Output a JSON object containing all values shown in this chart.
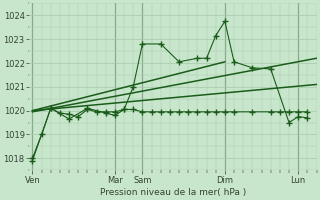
{
  "bg_color": "#c8e6cc",
  "grid_color": "#a8c8ac",
  "line_color": "#1a5c1a",
  "xlabel_text": "Pression niveau de la mer( hPa )",
  "xlabels": [
    "Ven",
    "Mar",
    "Sam",
    "Dim",
    "Lun"
  ],
  "xlabels_x": [
    0.0,
    4.5,
    6.0,
    10.5,
    14.5
  ],
  "vlines_x": [
    0.0,
    4.5,
    6.0,
    10.5,
    14.5
  ],
  "ylim": [
    1017.5,
    1024.5
  ],
  "xlim": [
    -0.2,
    15.5
  ],
  "yticks": [
    1018,
    1019,
    1020,
    1021,
    1022,
    1023,
    1024
  ],
  "series1_x": [
    0,
    1,
    2,
    3,
    4,
    4.5,
    5,
    5.5,
    6,
    7,
    8,
    9,
    9.5,
    10,
    10.5,
    11,
    12,
    13,
    14,
    14.5,
    15
  ],
  "series1_y": [
    1017.9,
    1020.1,
    1019.65,
    1020.1,
    1019.9,
    1019.8,
    1020.05,
    1021.0,
    1022.8,
    1022.8,
    1022.05,
    1022.2,
    1022.2,
    1023.15,
    1023.75,
    1022.05,
    1021.8,
    1021.75,
    1019.5,
    1019.75,
    1019.7
  ],
  "series2_x": [
    0,
    0.5,
    1,
    1.5,
    2,
    2.5,
    3,
    3.5,
    4,
    4.5,
    5,
    5.5,
    6,
    6.5,
    7,
    7.5,
    8,
    8.5,
    9,
    9.5,
    10,
    10.5,
    11,
    12,
    13,
    13.5,
    14,
    14.5,
    15
  ],
  "series2_y": [
    1018.0,
    1019.0,
    1020.1,
    1019.9,
    1019.85,
    1019.75,
    1020.05,
    1019.95,
    1019.95,
    1019.95,
    1020.05,
    1020.05,
    1019.95,
    1019.95,
    1019.95,
    1019.95,
    1019.95,
    1019.95,
    1019.95,
    1019.95,
    1019.95,
    1019.95,
    1019.95,
    1019.95,
    1019.95,
    1019.95,
    1019.95,
    1019.95,
    1019.95
  ],
  "trend1_x": [
    0,
    15.5
  ],
  "trend1_y": [
    1019.95,
    1022.2
  ],
  "trend2_x": [
    0,
    10.5
  ],
  "trend2_y": [
    1020.0,
    1022.05
  ],
  "trend3_x": [
    0,
    15.5
  ],
  "trend3_y": [
    1020.0,
    1021.1
  ],
  "marker": "+",
  "markersize": 4,
  "markeredgewidth": 1.0,
  "linewidth": 0.8,
  "figsize": [
    3.2,
    2.0
  ],
  "dpi": 100
}
